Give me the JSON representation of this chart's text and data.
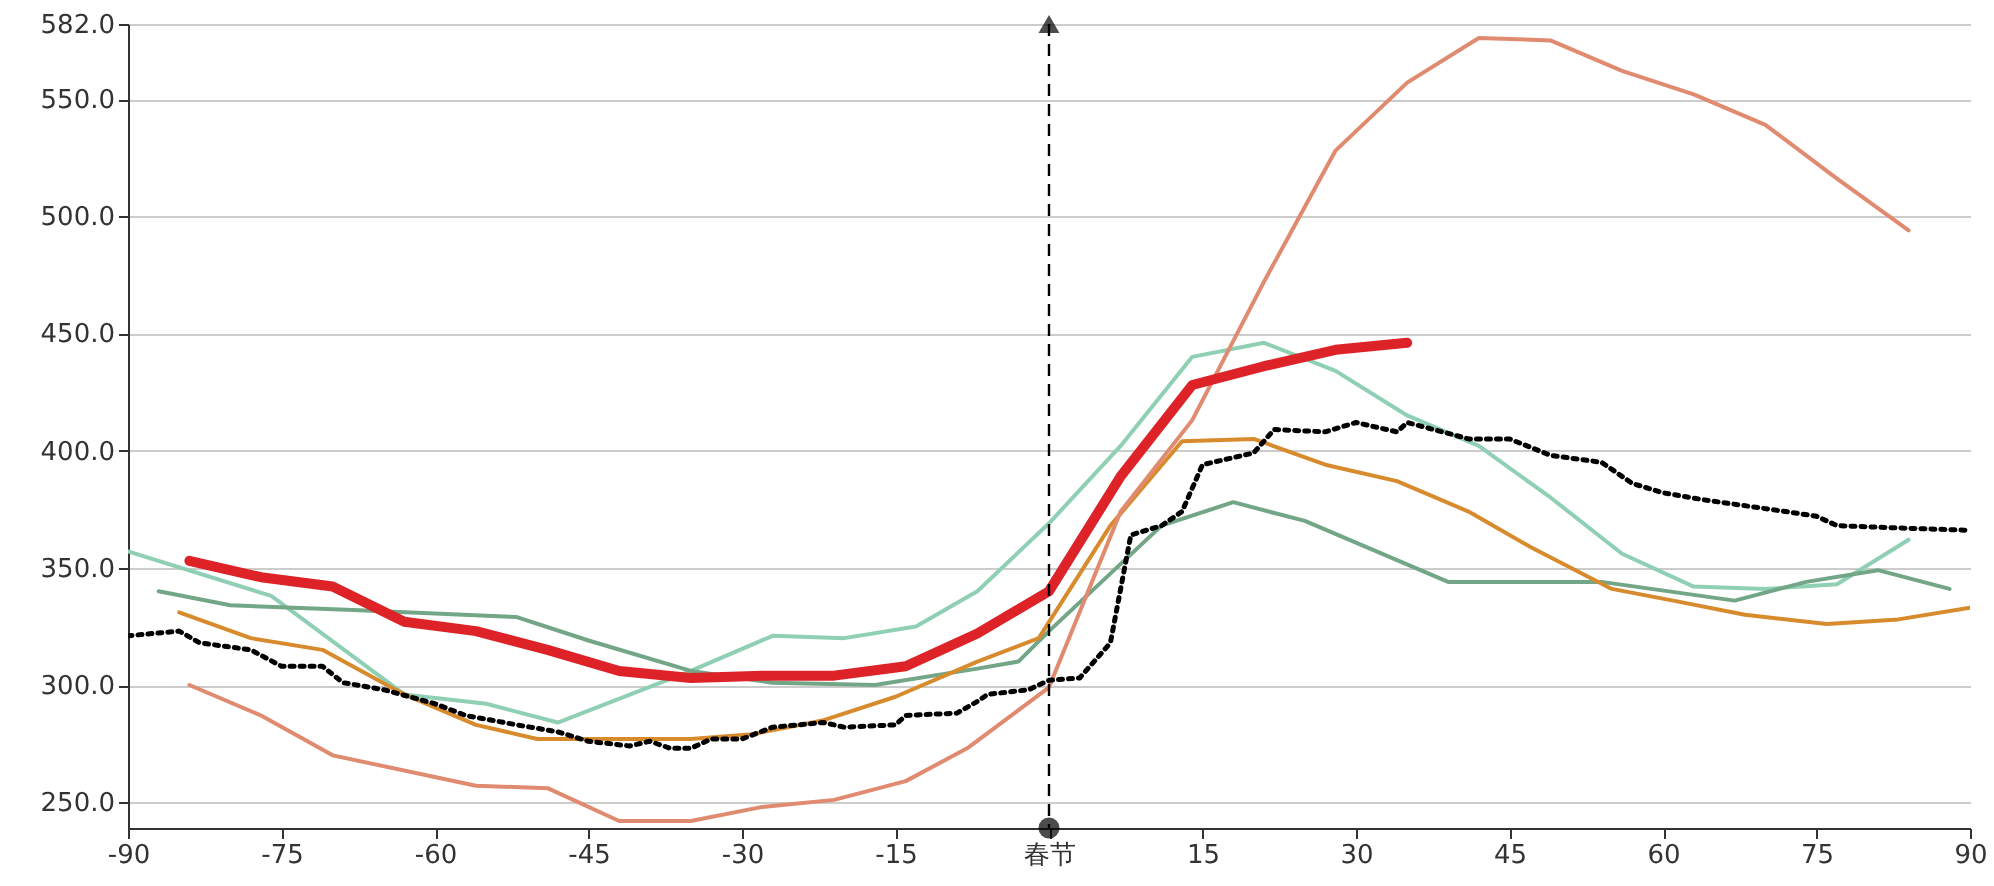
{
  "chart_data": {
    "type": "line",
    "xlim": [
      -90,
      90
    ],
    "xticks": [
      -90,
      -75,
      -60,
      -45,
      -30,
      -15,
      {
        "value": 0,
        "label": "春节"
      },
      15,
      30,
      45,
      60,
      75,
      90
    ],
    "ylim": [
      239,
      582
    ],
    "yticks": [
      {
        "value": 250,
        "label": "250.0"
      },
      {
        "value": 300,
        "label": "300.0"
      },
      {
        "value": 350,
        "label": "350.0"
      },
      {
        "value": 400,
        "label": "400.0"
      },
      {
        "value": 450,
        "label": "450.0"
      },
      {
        "value": 500,
        "label": "500.0"
      },
      {
        "value": 550,
        "label": "550.0"
      },
      {
        "value": 582,
        "label": "582.0"
      }
    ],
    "grid": "y",
    "ref_lines": [
      {
        "axis": "x",
        "value": 0,
        "label": null,
        "color": "#000000",
        "line_style": "dashed"
      }
    ],
    "series": [
      {
        "color": "#8fd0b4",
        "line_style": "solid",
        "x": [
          -90,
          -76,
          -63,
          -55,
          -48,
          -35,
          -27,
          -20,
          -13,
          -7,
          0,
          7,
          14,
          21,
          28,
          35,
          42,
          49,
          56,
          63,
          70,
          77,
          84
        ],
        "values": [
          357,
          338,
          296,
          292,
          284,
          306,
          321,
          320,
          325,
          340,
          369,
          402,
          440,
          446,
          434,
          415,
          402,
          380,
          356,
          342,
          341,
          343,
          362
        ]
      },
      {
        "color": "#72a687",
        "line_style": "solid",
        "x": [
          -87,
          -80,
          -68,
          -52,
          -45,
          -35,
          -27,
          -17,
          -7,
          -3,
          0,
          11,
          18,
          25,
          39,
          54,
          67,
          74,
          81,
          88
        ],
        "values": [
          340,
          334,
          332,
          329,
          319,
          306,
          301,
          300,
          307,
          310,
          323,
          368,
          378,
          370,
          344,
          344,
          336,
          344,
          349,
          341
        ]
      },
      {
        "color": "#d88b2c",
        "line_style": "solid",
        "x": [
          -85,
          -78,
          -71,
          -63,
          -56,
          -50,
          -35,
          -29,
          -22,
          -15,
          -7,
          -1,
          6,
          13,
          20,
          27,
          34,
          41,
          47,
          55,
          61,
          68,
          76,
          83,
          90
        ],
        "values": [
          331,
          320,
          315,
          296,
          283,
          277,
          277,
          279,
          285,
          295,
          310,
          320,
          368,
          404,
          405,
          394,
          387,
          374,
          359,
          341,
          336,
          330,
          326,
          328,
          333
        ]
      },
      {
        "color": "#e08a70",
        "line_style": "solid",
        "x": [
          -84,
          -77,
          -70,
          -56,
          -49,
          -42,
          -35,
          -28,
          -21,
          -14,
          -8,
          0,
          7,
          14,
          21,
          28,
          35,
          42,
          49,
          56,
          63,
          70,
          77,
          84
        ],
        "values": [
          300,
          287,
          270,
          257,
          256,
          242,
          242,
          248,
          251,
          259,
          273,
          299,
          374,
          413,
          472,
          528,
          557,
          576,
          575,
          562,
          552,
          539,
          516,
          494
        ]
      },
      {
        "color": "#000000",
        "line_style": "dotted",
        "x": [
          -90,
          -85,
          -83,
          -78,
          -75,
          -71,
          -69,
          -65,
          -60,
          -57,
          -52,
          -48,
          -45,
          -41,
          -39,
          -37,
          -35,
          -33,
          -30,
          -27,
          -22,
          -20,
          -15,
          -14,
          -9,
          -7,
          -6,
          -2,
          0,
          3,
          6,
          8,
          11,
          13,
          15,
          20,
          22,
          27,
          30,
          34,
          35,
          41,
          45,
          49,
          54,
          57,
          60,
          64,
          72,
          75,
          77,
          83,
          90
        ],
        "values": [
          321,
          323,
          318,
          315,
          308,
          308,
          301,
          298,
          292,
          287,
          283,
          280,
          276,
          274,
          276,
          273,
          273,
          277,
          277,
          282,
          284,
          282,
          283,
          287,
          288,
          293,
          296,
          298,
          302,
          303,
          318,
          364,
          368,
          374,
          394,
          399,
          409,
          408,
          412,
          408,
          412,
          405,
          405,
          398,
          395,
          386,
          382,
          379,
          374,
          372,
          368,
          367,
          366
        ]
      },
      {
        "color": "#dd2228",
        "line_style": "solid",
        "x": [
          -84,
          -77,
          -70,
          -63,
          -56,
          -49,
          -42,
          -35,
          -28,
          -21,
          -14,
          -7,
          0,
          7,
          14,
          21,
          28,
          35
        ],
        "values": [
          353,
          346,
          342,
          327,
          323,
          315,
          306,
          303,
          304,
          304,
          308,
          322,
          340,
          389,
          428,
          436,
          443,
          446
        ]
      }
    ]
  }
}
